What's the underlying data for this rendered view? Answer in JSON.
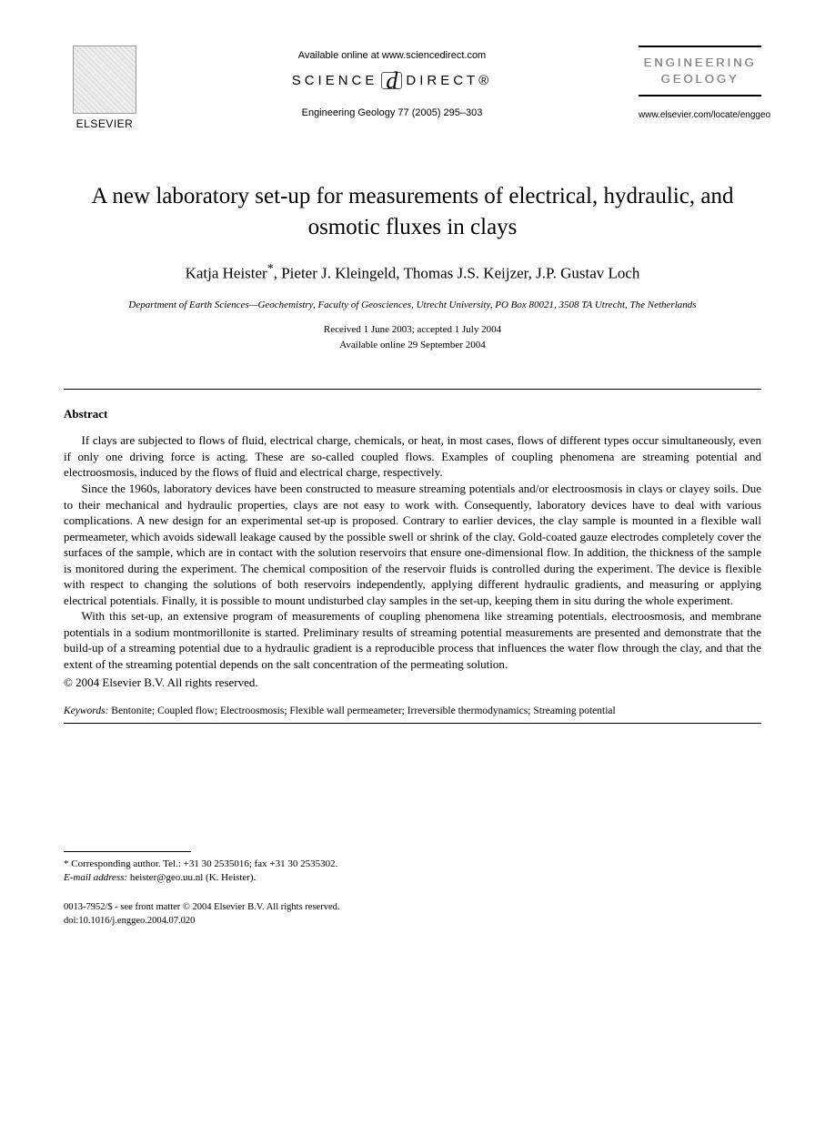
{
  "header": {
    "elsevier_label": "ELSEVIER",
    "available_online": "Available online at www.sciencedirect.com",
    "sciencedirect_left": "SCIENCE",
    "sciencedirect_at": "d",
    "sciencedirect_right": "DIRECT®",
    "citation": "Engineering Geology 77 (2005) 295–303",
    "journal_box_line1": "ENGINEERING",
    "journal_box_line2": "GEOLOGY",
    "journal_url": "www.elsevier.com/locate/enggeo"
  },
  "title": "A new laboratory set-up for measurements of electrical, hydraulic, and osmotic fluxes in clays",
  "authors": {
    "a1": "Katja Heister",
    "corr_mark": "*",
    "a2": ", Pieter J. Kleingeld, Thomas J.S. Keijzer, J.P. Gustav Loch"
  },
  "affiliation": "Department of Earth Sciences—Geochemistry, Faculty of Geosciences, Utrecht University, PO Box 80021, 3508 TA Utrecht, The Netherlands",
  "dates": "Received 1 June 2003; accepted 1 July 2004",
  "available_date": "Available online 29 September 2004",
  "abstract_heading": "Abstract",
  "abstract": {
    "p1": "If clays are subjected to flows of fluid, electrical charge, chemicals, or heat, in most cases, flows of different types occur simultaneously, even if only one driving force is acting. These are so-called coupled flows. Examples of coupling phenomena are streaming potential and electroosmosis, induced by the flows of fluid and electrical charge, respectively.",
    "p2": "Since the 1960s, laboratory devices have been constructed to measure streaming potentials and/or electroosmosis in clays or clayey soils. Due to their mechanical and hydraulic properties, clays are not easy to work with. Consequently, laboratory devices have to deal with various complications. A new design for an experimental set-up is proposed. Contrary to earlier devices, the clay sample is mounted in a flexible wall permeameter, which avoids sidewall leakage caused by the possible swell or shrink of the clay. Gold-coated gauze electrodes completely cover the surfaces of the sample, which are in contact with the solution reservoirs that ensure one-dimensional flow. In addition, the thickness of the sample is monitored during the experiment. The chemical composition of the reservoir fluids is controlled during the experiment. The device is flexible with respect to changing the solutions of both reservoirs independently, applying different hydraulic gradients, and measuring or applying electrical potentials. Finally, it is possible to mount undisturbed clay samples in the set-up, keeping them in situ during the whole experiment.",
    "p3": "With this set-up, an extensive program of measurements of coupling phenomena like streaming potentials, electroosmosis, and membrane potentials in a sodium montmorillonite is started. Preliminary results of streaming potential measurements are presented and demonstrate that the build-up of a streaming potential due to a hydraulic gradient is a reproducible process that influences the water flow through the clay, and that the extent of the streaming potential depends on the salt concentration of the permeating solution."
  },
  "copyright": "© 2004 Elsevier B.V. All rights reserved.",
  "keywords_label": "Keywords:",
  "keywords": " Bentonite; Coupled flow; Electroosmosis; Flexible wall permeameter; Irreversible thermodynamics; Streaming potential",
  "footnote": {
    "corr": "* Corresponding author. Tel.: +31 30 2535016; fax +31 30 2535302.",
    "email_label": "E-mail address:",
    "email_value": " heister@geo.uu.nl (K. Heister)."
  },
  "bottom": {
    "line1": "0013-7952/$ - see front matter © 2004 Elsevier B.V. All rights reserved.",
    "line2": "doi:10.1016/j.enggeo.2004.07.020"
  }
}
